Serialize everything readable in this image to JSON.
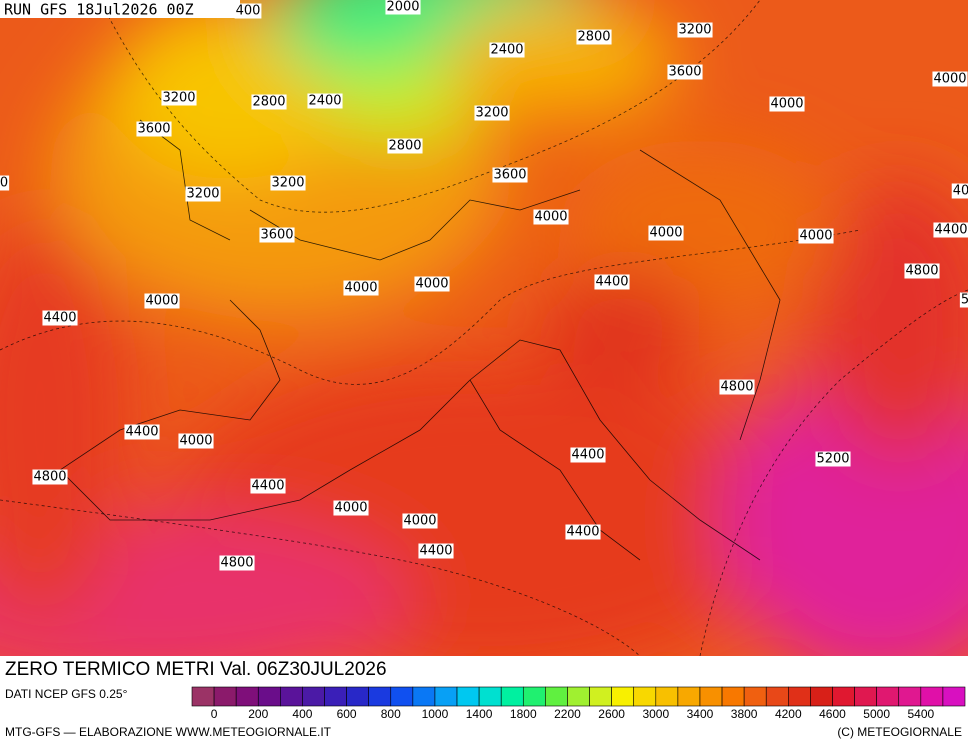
{
  "header": {
    "run": "RUN GFS 18Jul2026 00Z"
  },
  "contour_labels": [
    "400",
    "2000",
    "2400",
    "2800",
    "3200",
    "3600",
    "4000",
    "3200",
    "2800",
    "2400",
    "3200",
    "4000",
    "3600",
    "2800",
    "3200",
    "3600",
    "3200",
    "0",
    "40",
    "4000",
    "4000",
    "4000",
    "4400",
    "3600",
    "4400",
    "4800",
    "4000",
    "4000",
    "4000",
    "4400",
    "4800",
    "4400",
    "4000",
    "4400",
    "5200",
    "4800",
    "4400",
    "4000",
    "4000",
    "4400",
    "4400",
    "4800",
    "5"
  ],
  "title": "ZERO TERMICO METRI Val. 06Z30JUL2026",
  "source": "DATI NCEP GFS 0.25°",
  "credit": "MTG-GFS — ELABORAZIONE WWW.METEOGIORNALE.IT",
  "copyright": "(C) METEOGIORNALE",
  "colorbar": {
    "ticks": [
      "0",
      "200",
      "400",
      "600",
      "800",
      "1000",
      "1400",
      "1800",
      "2200",
      "2600",
      "3000",
      "3400",
      "3800",
      "4200",
      "4600",
      "5000",
      "5400"
    ],
    "colors": [
      "#9b3366",
      "#8b1a6b",
      "#7f0f7a",
      "#6a0d8a",
      "#5a139a",
      "#4b1aa6",
      "#3a1fb8",
      "#2828c8",
      "#1a3ae0",
      "#1050f0",
      "#0a78f5",
      "#08a0f5",
      "#00c8f0",
      "#00e0d0",
      "#00f0a0",
      "#20f070",
      "#60f040",
      "#a0f030",
      "#d0f020",
      "#f8f000",
      "#f8d800",
      "#f8c000",
      "#f8a800",
      "#f89000",
      "#f87800",
      "#f06010",
      "#e84818",
      "#e03018",
      "#d82018",
      "#e01830",
      "#e01850",
      "#e01870",
      "#e01890",
      "#e010a8",
      "#d810c0"
    ]
  }
}
